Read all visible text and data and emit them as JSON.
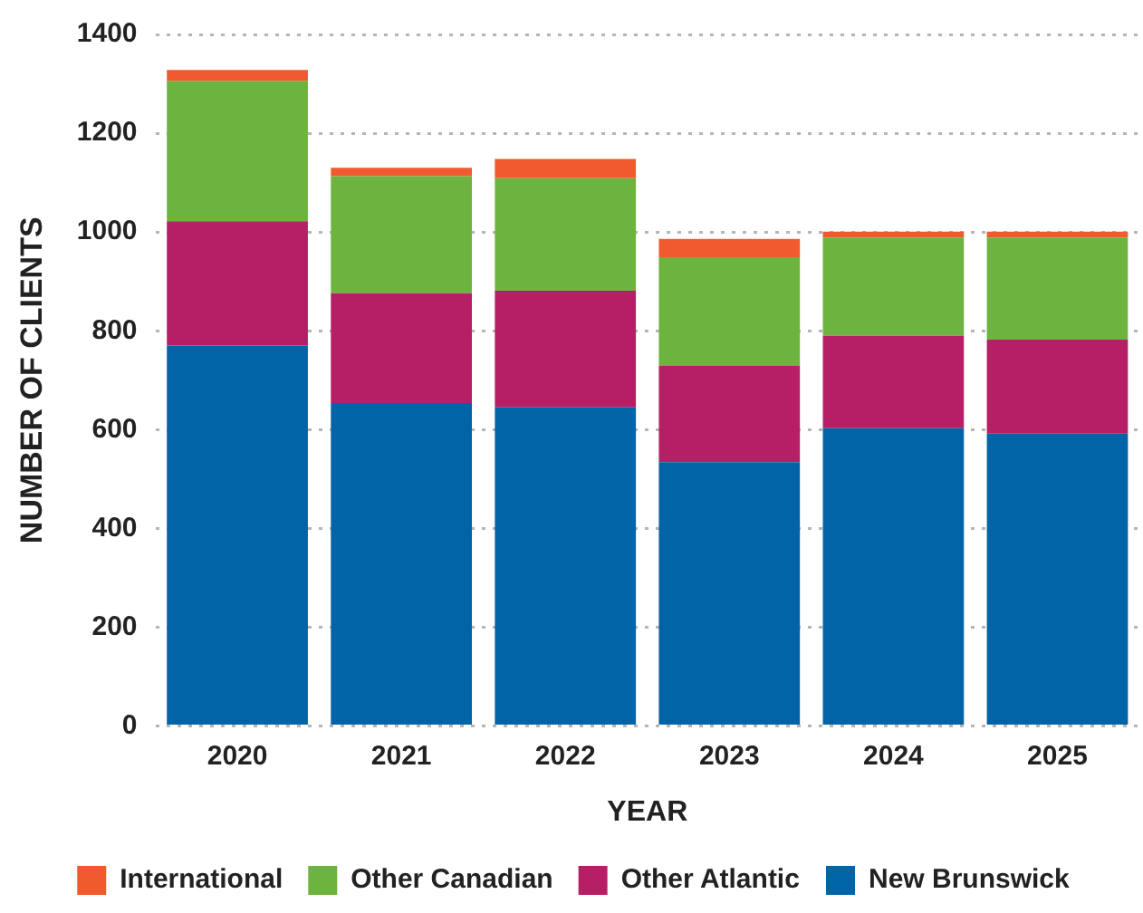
{
  "chart_data": {
    "type": "bar",
    "stacked": true,
    "xlabel": "YEAR",
    "ylabel": "NUMBER OF CLIENTS",
    "categories": [
      "2020",
      "2021",
      "2022",
      "2023",
      "2024",
      "2025"
    ],
    "series": [
      {
        "name": "New Brunswick",
        "color": "#0064a6",
        "values": [
          770,
          654,
          645,
          534,
          603,
          592
        ]
      },
      {
        "name": "Other Atlantic",
        "color": "#b61f66",
        "values": [
          252,
          222,
          236,
          196,
          187,
          190
        ]
      },
      {
        "name": "Other Canadian",
        "color": "#6db33f",
        "values": [
          284,
          237,
          228,
          219,
          199,
          207
        ]
      },
      {
        "name": "International",
        "color": "#f15a2f",
        "values": [
          22,
          17,
          39,
          37,
          12,
          12
        ]
      }
    ],
    "ylim": [
      0,
      1400
    ],
    "yticks": [
      0,
      200,
      400,
      600,
      800,
      1000,
      1200,
      1400
    ],
    "grid": "y",
    "legend": "bottom"
  }
}
